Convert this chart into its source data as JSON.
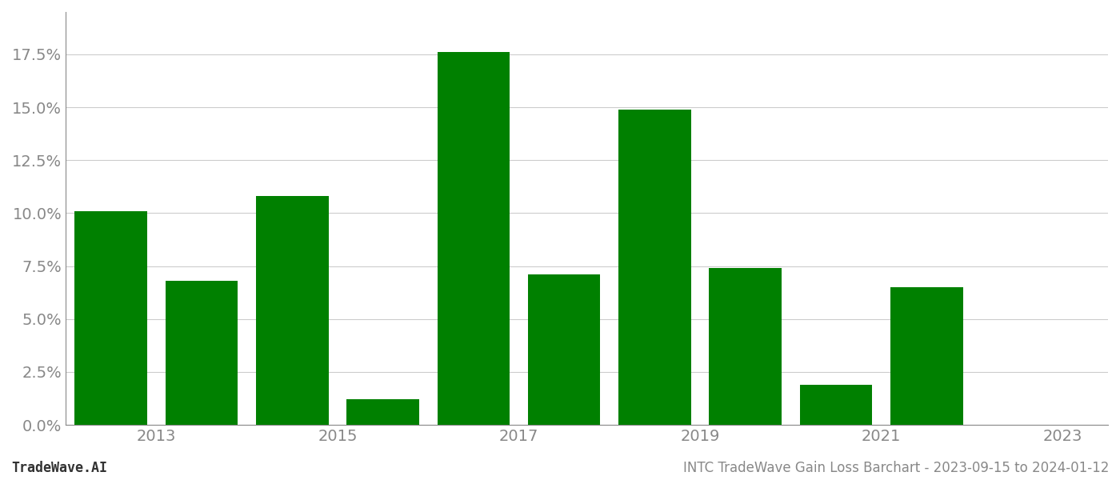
{
  "years": [
    0,
    1,
    2,
    3,
    4,
    5,
    6,
    7,
    8,
    9,
    10
  ],
  "values": [
    0.101,
    0.068,
    0.108,
    0.012,
    0.176,
    0.071,
    0.149,
    0.074,
    0.019,
    0.065,
    0.0
  ],
  "bar_color": "#008000",
  "background_color": "#ffffff",
  "grid_color": "#cccccc",
  "axis_color": "#888888",
  "tick_label_color": "#888888",
  "yticks": [
    0.0,
    0.025,
    0.05,
    0.075,
    0.1,
    0.125,
    0.15,
    0.175
  ],
  "ylim": [
    0,
    0.195
  ],
  "xtick_positions": [
    0.5,
    2.5,
    4.5,
    6.5,
    8.5,
    10.5
  ],
  "xtick_labels": [
    "2013",
    "2015",
    "2017",
    "2019",
    "2021",
    "2023"
  ],
  "xlim": [
    -0.5,
    11.0
  ],
  "footer_left": "TradeWave.AI",
  "footer_right": "INTC TradeWave Gain Loss Barchart - 2023-09-15 to 2024-01-12",
  "bar_width": 0.8,
  "tick_fontsize": 14,
  "footer_fontsize": 12
}
